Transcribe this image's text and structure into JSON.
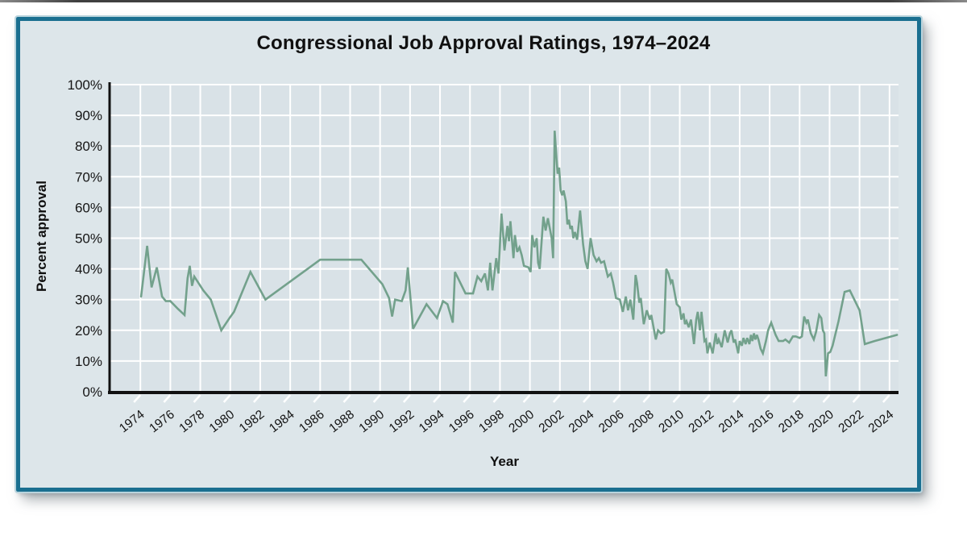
{
  "colors": {
    "panel_border": "#1a6f90",
    "panel_bg": "#dde6ea",
    "plot_bg": "#d9e2e7",
    "gridline": "#ffffff",
    "line": "#73a18c",
    "axis": "#111111",
    "text": "#151515"
  },
  "chart_data": {
    "type": "line",
    "title": "Congressional Job Approval Ratings, 1974–2024",
    "xlabel": "Year",
    "ylabel": "Percent approval",
    "xlim": [
      1972.0,
      2024.6
    ],
    "ylim": [
      0,
      100
    ],
    "grid": true,
    "legend_position": "none",
    "x_ticks": [
      1974,
      1976,
      1978,
      1980,
      1982,
      1984,
      1986,
      1988,
      1990,
      1992,
      1994,
      1996,
      1998,
      2000,
      2002,
      2004,
      2006,
      2008,
      2010,
      2012,
      2014,
      2016,
      2018,
      2020,
      2022,
      2024
    ],
    "x_tick_labels": [
      "1974",
      "1976",
      "1978",
      "1980",
      "1982",
      "1984",
      "1986",
      "1988",
      "1990",
      "1992",
      "1994",
      "1996",
      "1998",
      "2000",
      "2002",
      "2004",
      "2006",
      "2008",
      "2010",
      "2012",
      "2014",
      "2016",
      "2018",
      "2020",
      "2022",
      "2024"
    ],
    "y_ticks": [
      0,
      10,
      20,
      30,
      40,
      50,
      60,
      70,
      80,
      90,
      100
    ],
    "y_tick_labels": [
      "0%",
      "10%",
      "20%",
      "30%",
      "40%",
      "50%",
      "60%",
      "70%",
      "80%",
      "90%",
      "100%"
    ],
    "series": [
      {
        "points": [
          [
            1974.05,
            31
          ],
          [
            1974.45,
            47.5
          ],
          [
            1974.75,
            34
          ],
          [
            1975.1,
            40.5
          ],
          [
            1975.45,
            31
          ],
          [
            1975.7,
            29.5
          ],
          [
            1976.0,
            29.5
          ],
          [
            1976.5,
            27
          ],
          [
            1976.95,
            25
          ],
          [
            1977.15,
            37
          ],
          [
            1977.3,
            41
          ],
          [
            1977.45,
            34.5
          ],
          [
            1977.6,
            37.5
          ],
          [
            1978.2,
            33
          ],
          [
            1978.7,
            30
          ],
          [
            1979.4,
            20
          ],
          [
            1979.95,
            24
          ],
          [
            1980.25,
            26
          ],
          [
            1981.35,
            39
          ],
          [
            1982.35,
            30
          ],
          [
            1986.0,
            43
          ],
          [
            1988.75,
            43
          ],
          [
            1990.15,
            35
          ],
          [
            1990.6,
            30.5
          ],
          [
            1990.8,
            24.5
          ],
          [
            1991.0,
            30
          ],
          [
            1991.45,
            29.5
          ],
          [
            1991.7,
            33
          ],
          [
            1991.85,
            40.5
          ],
          [
            1992.2,
            20.5
          ],
          [
            1993.1,
            28.5
          ],
          [
            1993.8,
            24
          ],
          [
            1994.2,
            29.5
          ],
          [
            1994.5,
            28.5
          ],
          [
            1994.85,
            22.5
          ],
          [
            1995.0,
            39
          ],
          [
            1995.3,
            36
          ],
          [
            1995.7,
            32
          ],
          [
            1996.2,
            32
          ],
          [
            1996.5,
            37.5
          ],
          [
            1996.75,
            36
          ],
          [
            1997.0,
            38.5
          ],
          [
            1997.2,
            33
          ],
          [
            1997.35,
            42
          ],
          [
            1997.5,
            33
          ],
          [
            1997.75,
            43.5
          ],
          [
            1997.9,
            38.5
          ],
          [
            1998.1,
            58
          ],
          [
            1998.3,
            46
          ],
          [
            1998.5,
            54
          ],
          [
            1998.6,
            49
          ],
          [
            1998.7,
            55.5
          ],
          [
            1998.9,
            43.5
          ],
          [
            1999.0,
            51
          ],
          [
            1999.15,
            45.5
          ],
          [
            1999.3,
            47
          ],
          [
            1999.45,
            44.5
          ],
          [
            1999.6,
            41
          ],
          [
            1999.9,
            40.5
          ],
          [
            2000.05,
            39
          ],
          [
            2000.15,
            51
          ],
          [
            2000.3,
            47
          ],
          [
            2000.45,
            50
          ],
          [
            2000.55,
            42
          ],
          [
            2000.65,
            40
          ],
          [
            2000.9,
            57
          ],
          [
            2001.05,
            52.5
          ],
          [
            2001.2,
            56.5
          ],
          [
            2001.45,
            50
          ],
          [
            2001.55,
            43.5
          ],
          [
            2001.65,
            85
          ],
          [
            2001.8,
            74
          ],
          [
            2001.85,
            71
          ],
          [
            2001.95,
            73
          ],
          [
            2002.05,
            65.5
          ],
          [
            2002.15,
            64
          ],
          [
            2002.25,
            65.5
          ],
          [
            2002.4,
            62
          ],
          [
            2002.5,
            54.5
          ],
          [
            2002.6,
            56
          ],
          [
            2002.7,
            53
          ],
          [
            2002.8,
            54
          ],
          [
            2002.9,
            50
          ],
          [
            2003.0,
            52
          ],
          [
            2003.15,
            49.5
          ],
          [
            2003.35,
            59
          ],
          [
            2003.55,
            48
          ],
          [
            2003.7,
            42.5
          ],
          [
            2003.85,
            40
          ],
          [
            2004.05,
            50
          ],
          [
            2004.25,
            44.5
          ],
          [
            2004.45,
            42.5
          ],
          [
            2004.6,
            43.5
          ],
          [
            2004.75,
            42
          ],
          [
            2004.95,
            42.5
          ],
          [
            2005.2,
            37.5
          ],
          [
            2005.4,
            38.5
          ],
          [
            2005.55,
            35.5
          ],
          [
            2005.75,
            30.5
          ],
          [
            2006.0,
            30
          ],
          [
            2006.2,
            26
          ],
          [
            2006.4,
            31
          ],
          [
            2006.55,
            26.5
          ],
          [
            2006.7,
            30
          ],
          [
            2006.9,
            23.5
          ],
          [
            2007.05,
            38
          ],
          [
            2007.15,
            35.5
          ],
          [
            2007.3,
            29
          ],
          [
            2007.4,
            30.5
          ],
          [
            2007.6,
            22
          ],
          [
            2007.8,
            26.5
          ],
          [
            2008.0,
            23.5
          ],
          [
            2008.1,
            25
          ],
          [
            2008.4,
            17
          ],
          [
            2008.55,
            20
          ],
          [
            2008.75,
            19
          ],
          [
            2008.95,
            19.5
          ],
          [
            2009.1,
            40
          ],
          [
            2009.25,
            38.5
          ],
          [
            2009.4,
            35.5
          ],
          [
            2009.5,
            36.5
          ],
          [
            2009.65,
            32.5
          ],
          [
            2009.8,
            28.5
          ],
          [
            2010.0,
            27.5
          ],
          [
            2010.1,
            23.5
          ],
          [
            2010.25,
            25.5
          ],
          [
            2010.35,
            22
          ],
          [
            2010.45,
            23
          ],
          [
            2010.6,
            21
          ],
          [
            2010.75,
            23.5
          ],
          [
            2010.95,
            15.5
          ],
          [
            2011.1,
            23.5
          ],
          [
            2011.2,
            26
          ],
          [
            2011.35,
            20
          ],
          [
            2011.45,
            26
          ],
          [
            2011.65,
            16.5
          ],
          [
            2011.75,
            17
          ],
          [
            2011.85,
            12.5
          ],
          [
            2012.0,
            16
          ],
          [
            2012.2,
            12.5
          ],
          [
            2012.4,
            19
          ],
          [
            2012.5,
            15.5
          ],
          [
            2012.6,
            17
          ],
          [
            2012.8,
            14.5
          ],
          [
            2013.0,
            20
          ],
          [
            2013.2,
            16
          ],
          [
            2013.35,
            19
          ],
          [
            2013.45,
            20
          ],
          [
            2013.6,
            16
          ],
          [
            2013.7,
            17
          ],
          [
            2013.9,
            12.5
          ],
          [
            2014.0,
            16.5
          ],
          [
            2014.15,
            15
          ],
          [
            2014.25,
            17.5
          ],
          [
            2014.4,
            15.5
          ],
          [
            2014.5,
            17.5
          ],
          [
            2014.65,
            15.5
          ],
          [
            2014.75,
            18.5
          ],
          [
            2014.85,
            16.5
          ],
          [
            2014.95,
            19
          ],
          [
            2015.05,
            17
          ],
          [
            2015.15,
            18.5
          ],
          [
            2015.25,
            17
          ],
          [
            2015.4,
            14
          ],
          [
            2015.55,
            12.5
          ],
          [
            2015.75,
            16.5
          ],
          [
            2015.9,
            20
          ],
          [
            2016.1,
            22.5
          ],
          [
            2016.4,
            18.5
          ],
          [
            2016.6,
            16.5
          ],
          [
            2016.9,
            16.5
          ],
          [
            2017.05,
            17
          ],
          [
            2017.3,
            16
          ],
          [
            2017.55,
            18
          ],
          [
            2017.75,
            18
          ],
          [
            2018.0,
            17.5
          ],
          [
            2018.15,
            18
          ],
          [
            2018.3,
            24.5
          ],
          [
            2018.45,
            22.5
          ],
          [
            2018.55,
            23.5
          ],
          [
            2018.75,
            19
          ],
          [
            2018.95,
            17
          ],
          [
            2019.1,
            19.5
          ],
          [
            2019.3,
            25
          ],
          [
            2019.45,
            24
          ],
          [
            2019.55,
            20
          ],
          [
            2019.65,
            19
          ],
          [
            2019.75,
            5
          ],
          [
            2019.9,
            12.5
          ],
          [
            2020.05,
            13
          ],
          [
            2020.2,
            15
          ],
          [
            2020.6,
            23
          ],
          [
            2021.0,
            32.5
          ],
          [
            2021.35,
            33
          ],
          [
            2021.9,
            27.5
          ],
          [
            2022.0,
            26.5
          ],
          [
            2022.35,
            15.5
          ],
          [
            2023.0,
            16.5
          ],
          [
            2024.5,
            18.5
          ]
        ]
      }
    ]
  }
}
